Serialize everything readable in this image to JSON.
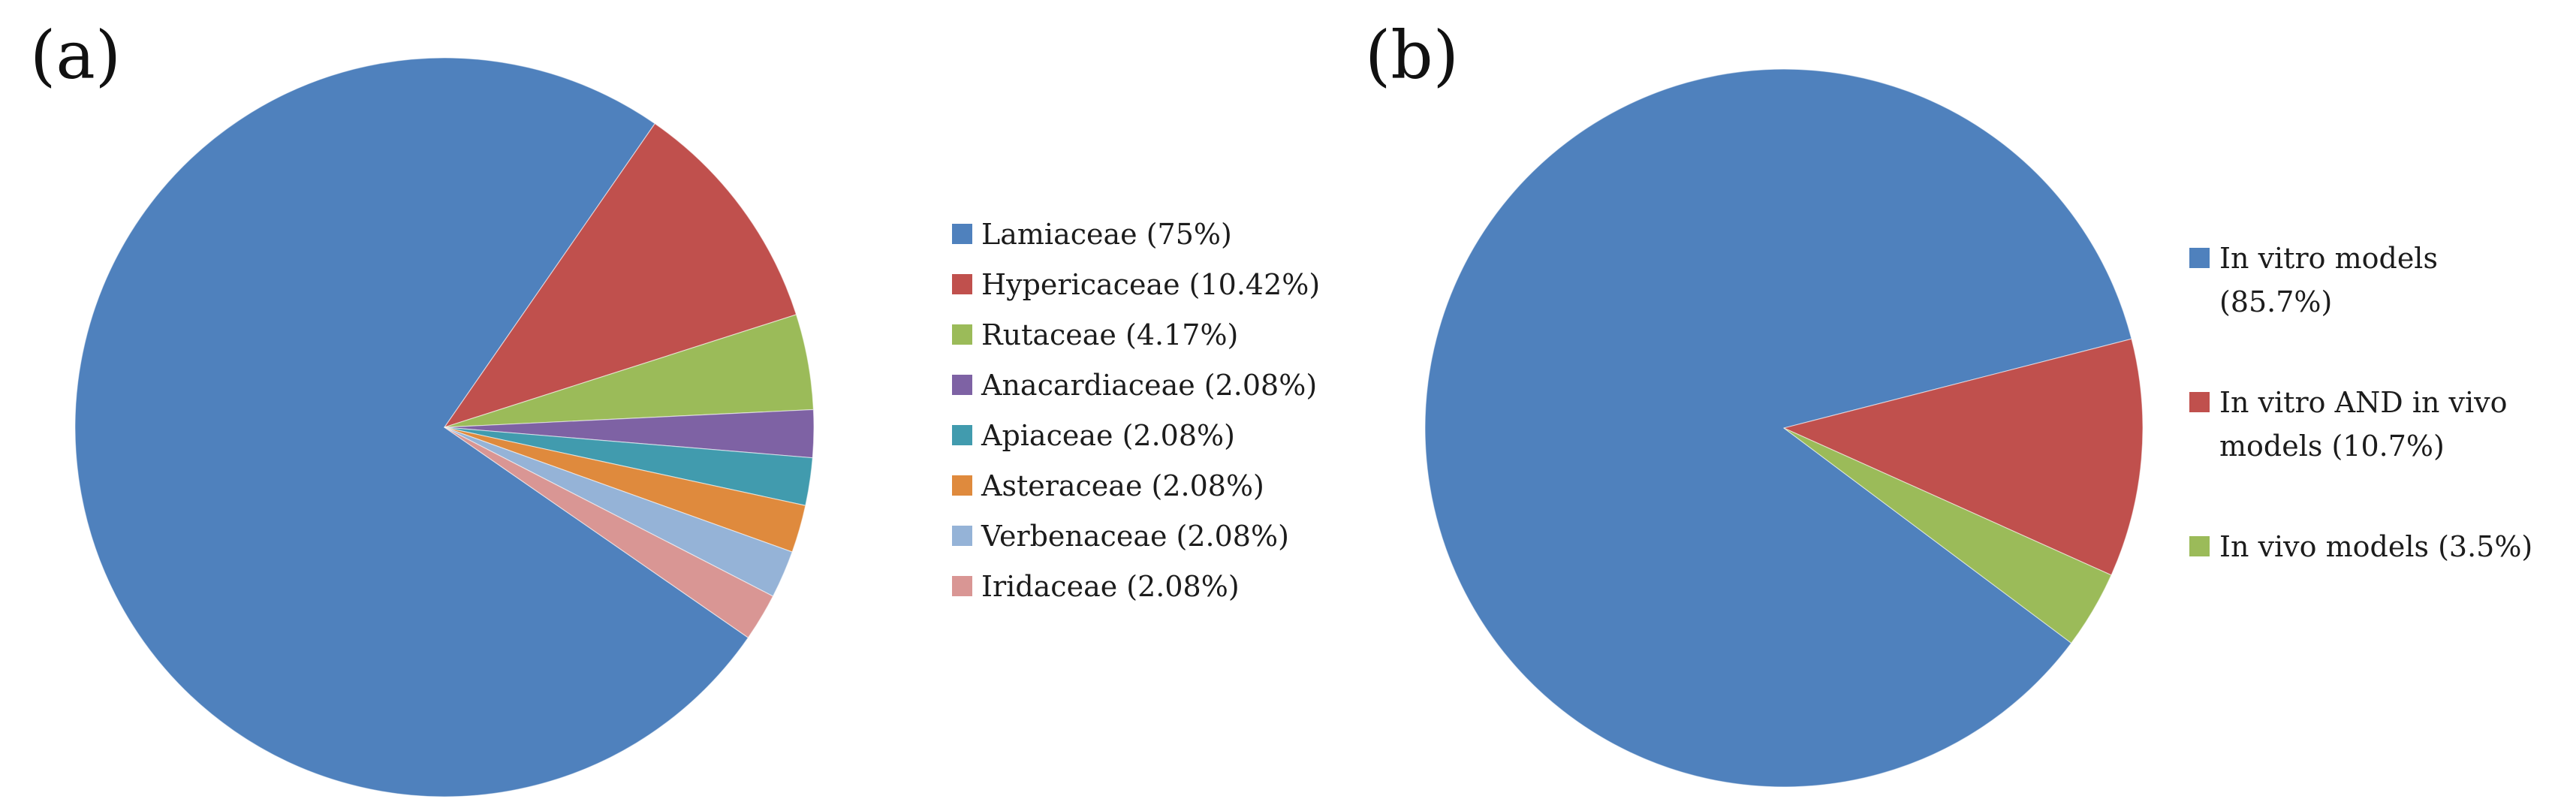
{
  "figure": {
    "background_color": "#ffffff",
    "text_color": "#1c1c1c"
  },
  "chart_data": [
    {
      "type": "pie",
      "panel": "(a)",
      "legend_position": "right",
      "direction": "clockwise",
      "start_angle_deg": 124.7,
      "slices": [
        {
          "label": "Lamiaceae",
          "value_pct": 75,
          "legend_lines": [
            "Lamiaceae (75%)"
          ],
          "color": "#4F81BD"
        },
        {
          "label": "Hypericaceae",
          "value_pct": 10.42,
          "legend_lines": [
            "Hypericaceae (10.42%)"
          ],
          "color": "#C0504D"
        },
        {
          "label": "Rutaceae",
          "value_pct": 4.17,
          "legend_lines": [
            "Rutaceae (4.17%)"
          ],
          "color": "#9BBB59"
        },
        {
          "label": "Anacardiaceae",
          "value_pct": 2.08,
          "legend_lines": [
            "Anacardiaceae (2.08%)"
          ],
          "color": "#7E62A4"
        },
        {
          "label": "Apiaceae",
          "value_pct": 2.08,
          "legend_lines": [
            "Apiaceae (2.08%)"
          ],
          "color": "#419BAE"
        },
        {
          "label": "Asteraceae",
          "value_pct": 2.08,
          "legend_lines": [
            "Asteraceae (2.08%)"
          ],
          "color": "#DF8A3D"
        },
        {
          "label": "Verbenaceae",
          "value_pct": 2.08,
          "legend_lines": [
            "Verbenaceae (2.08%)"
          ],
          "color": "#95B3D7"
        },
        {
          "label": "Iridaceae",
          "value_pct": 2.08,
          "legend_lines": [
            "Iridaceae (2.08%)"
          ],
          "color": "#D99694"
        }
      ]
    },
    {
      "type": "pie",
      "panel": "(b)",
      "legend_position": "right",
      "direction": "clockwise",
      "start_angle_deg": 126.8,
      "slices": [
        {
          "label": "In vitro models",
          "value_pct": 85.7,
          "legend_lines": [
            "In vitro models",
            "(85.7%)"
          ],
          "color": "#4F81BD"
        },
        {
          "label": "In vitro AND in vivo models",
          "value_pct": 10.7,
          "legend_lines": [
            "In vitro AND in vivo",
            "models (10.7%)"
          ],
          "color": "#C0504D"
        },
        {
          "label": "In vivo models",
          "value_pct": 3.5,
          "legend_lines": [
            "In vivo models (3.5%)"
          ],
          "color": "#9BBB59"
        }
      ]
    }
  ]
}
